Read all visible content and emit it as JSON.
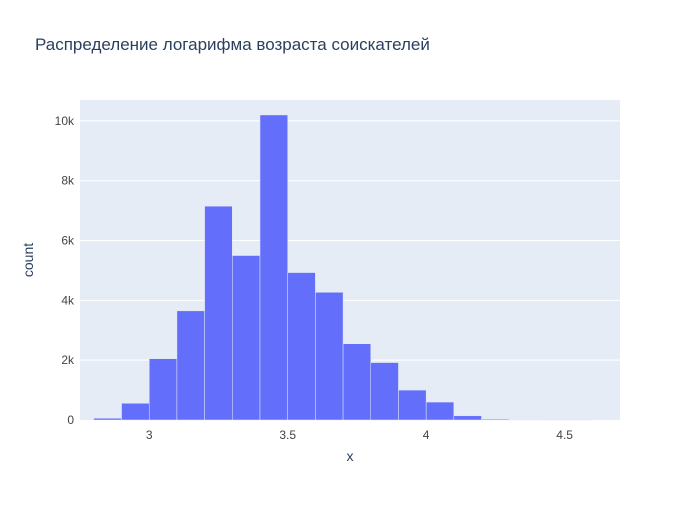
{
  "chart_data": {
    "type": "bar",
    "title": "Распределение логарифма возраста соискателей",
    "xlabel": "x",
    "ylabel": "count",
    "xlim": [
      2.75,
      4.7
    ],
    "ylim": [
      0,
      10700
    ],
    "bin_width": 0.1,
    "bins": [
      {
        "x0": 2.8,
        "x1": 2.9,
        "count": 60
      },
      {
        "x0": 2.9,
        "x1": 3.0,
        "count": 560
      },
      {
        "x0": 3.0,
        "x1": 3.1,
        "count": 2050
      },
      {
        "x0": 3.1,
        "x1": 3.2,
        "count": 3650
      },
      {
        "x0": 3.2,
        "x1": 3.3,
        "count": 7150
      },
      {
        "x0": 3.3,
        "x1": 3.4,
        "count": 5500
      },
      {
        "x0": 3.4,
        "x1": 3.5,
        "count": 10200
      },
      {
        "x0": 3.5,
        "x1": 3.6,
        "count": 4930
      },
      {
        "x0": 3.6,
        "x1": 3.7,
        "count": 4270
      },
      {
        "x0": 3.7,
        "x1": 3.8,
        "count": 2550
      },
      {
        "x0": 3.8,
        "x1": 3.9,
        "count": 1920
      },
      {
        "x0": 3.9,
        "x1": 4.0,
        "count": 1000
      },
      {
        "x0": 4.0,
        "x1": 4.1,
        "count": 600
      },
      {
        "x0": 4.1,
        "x1": 4.2,
        "count": 140
      },
      {
        "x0": 4.2,
        "x1": 4.3,
        "count": 30
      },
      {
        "x0": 4.3,
        "x1": 4.4,
        "count": 8
      },
      {
        "x0": 4.4,
        "x1": 4.5,
        "count": 4
      },
      {
        "x0": 4.5,
        "x1": 4.6,
        "count": 3
      }
    ],
    "x_ticks": [
      {
        "value": 3,
        "label": "3"
      },
      {
        "value": 3.5,
        "label": "3.5"
      },
      {
        "value": 4,
        "label": "4"
      },
      {
        "value": 4.5,
        "label": "4.5"
      }
    ],
    "y_ticks": [
      {
        "value": 0,
        "label": "0"
      },
      {
        "value": 2000,
        "label": "2k"
      },
      {
        "value": 4000,
        "label": "4k"
      },
      {
        "value": 6000,
        "label": "6k"
      },
      {
        "value": 8000,
        "label": "8k"
      },
      {
        "value": 10000,
        "label": "10k"
      }
    ],
    "grid": true,
    "colors": {
      "bar": "#636efa",
      "plot_bg": "#e5ecf6",
      "grid": "#ffffff",
      "text": "#2a3f5f",
      "tick_text": "#444444"
    }
  }
}
